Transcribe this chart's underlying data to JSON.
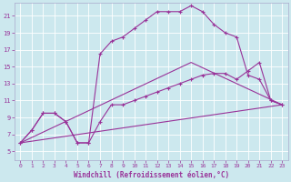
{
  "xlabel": "Windchill (Refroidissement éolien,°C)",
  "background_color": "#cce8ee",
  "grid_color": "#ffffff",
  "line_color": "#993399",
  "spine_color": "#aaaacc",
  "xlim": [
    -0.5,
    23.5
  ],
  "ylim": [
    4.0,
    22.5
  ],
  "xticks": [
    0,
    1,
    2,
    3,
    4,
    5,
    6,
    7,
    8,
    9,
    10,
    11,
    12,
    13,
    14,
    15,
    16,
    17,
    18,
    19,
    20,
    21,
    22,
    23
  ],
  "yticks": [
    5,
    7,
    9,
    11,
    13,
    15,
    17,
    19,
    21
  ],
  "series_line1_x": [
    0,
    23
  ],
  "series_line1_y": [
    6.0,
    10.5
  ],
  "series_line2_x": [
    0,
    15,
    23
  ],
  "series_line2_y": [
    6.0,
    15.5,
    10.5
  ],
  "series_upper_x": [
    0,
    1,
    2,
    3,
    4,
    5,
    6,
    7,
    8,
    9,
    10,
    11,
    12,
    13,
    14,
    15,
    16,
    17,
    18,
    19,
    20,
    21,
    22,
    23
  ],
  "series_upper_y": [
    6.0,
    7.5,
    9.5,
    9.5,
    8.5,
    6.0,
    6.0,
    16.5,
    18.0,
    18.5,
    19.5,
    20.5,
    21.5,
    21.5,
    21.5,
    22.2,
    21.5,
    20.0,
    19.0,
    18.5,
    14.0,
    13.5,
    11.0,
    10.5
  ],
  "series_lower_x": [
    0,
    1,
    2,
    3,
    4,
    5,
    6,
    7,
    8,
    9,
    10,
    11,
    12,
    13,
    14,
    15,
    16,
    17,
    18,
    19,
    20,
    21,
    22,
    23
  ],
  "series_lower_y": [
    6.0,
    7.5,
    9.5,
    9.5,
    8.5,
    6.0,
    6.0,
    8.5,
    10.5,
    10.5,
    11.0,
    11.5,
    12.0,
    12.5,
    13.0,
    13.5,
    14.0,
    14.2,
    14.2,
    13.5,
    14.5,
    15.5,
    11.0,
    10.5
  ],
  "tick_fontsize": 5.0,
  "xlabel_fontsize": 5.5,
  "marker": "+",
  "markersize": 3.5,
  "linewidth": 0.8
}
